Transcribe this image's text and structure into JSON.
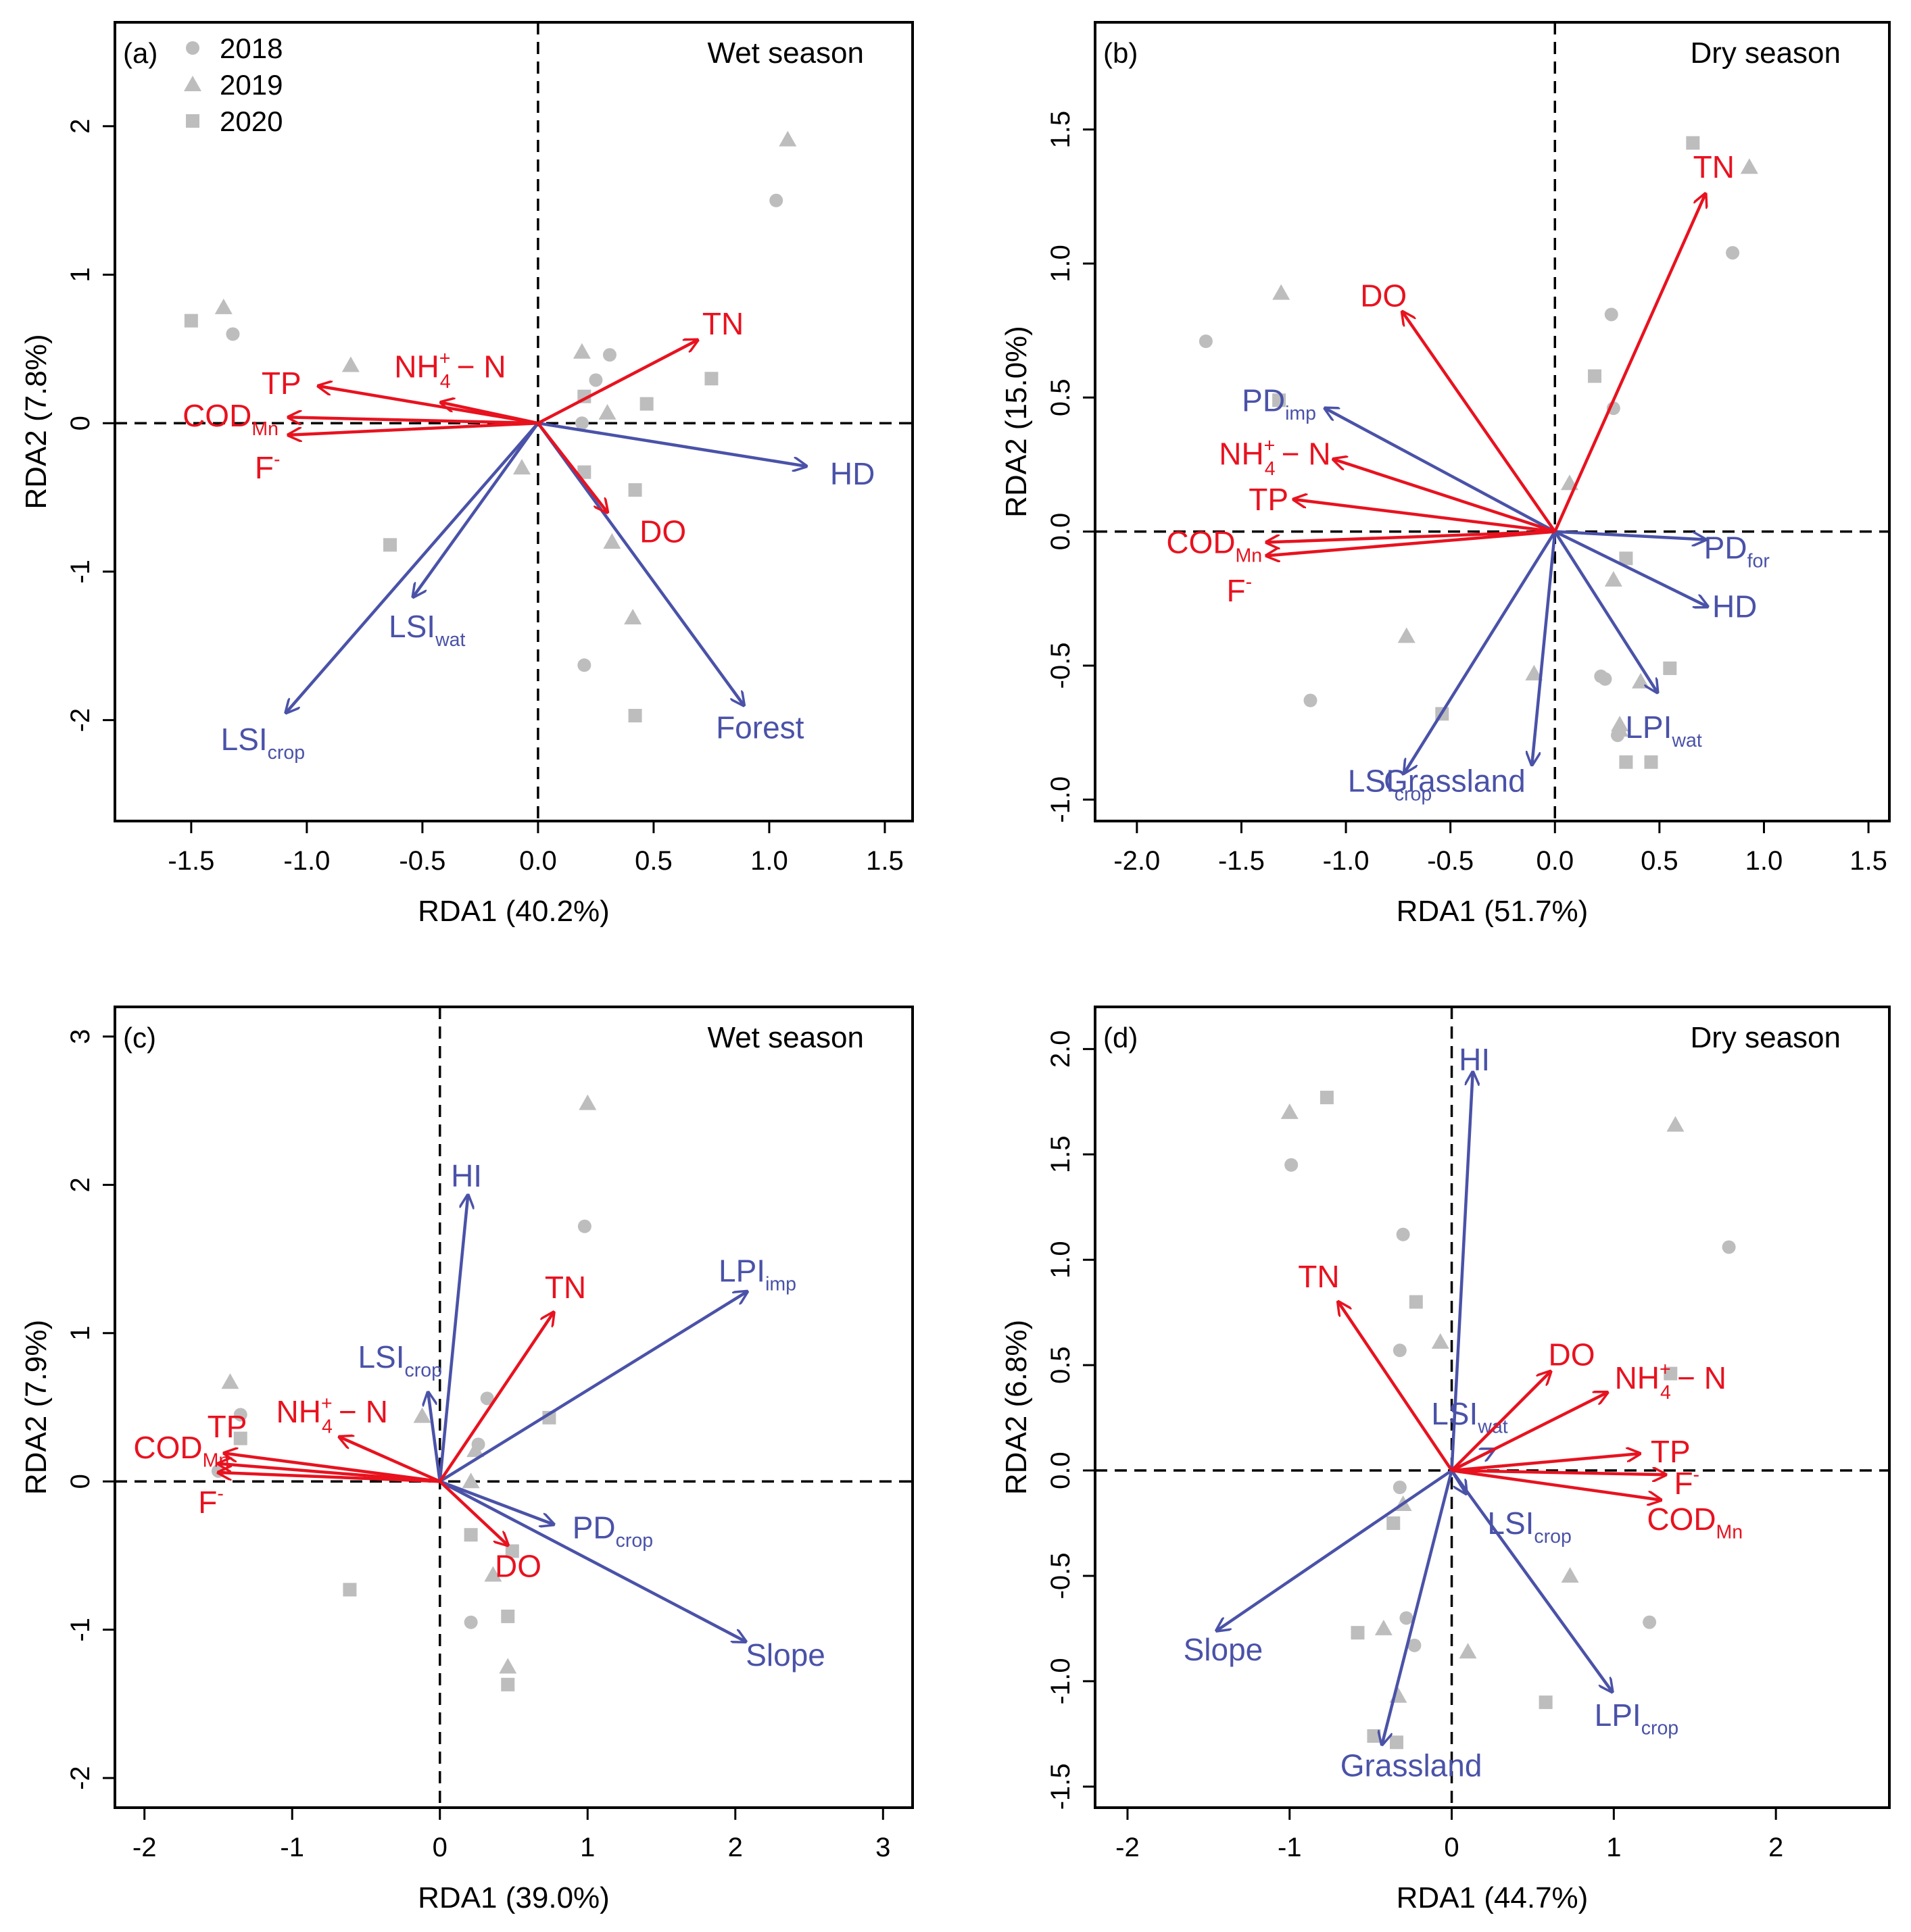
{
  "colors": {
    "response": "#e8121f",
    "explanatory": "#4a52a8",
    "site": "#bdbdbd",
    "axis": "#000000"
  },
  "legend": {
    "items": [
      {
        "label": "2018",
        "shape": "circle"
      },
      {
        "label": "2019",
        "shape": "triangle"
      },
      {
        "label": "2020",
        "shape": "square"
      }
    ]
  },
  "chart_data": [
    {
      "id": "a",
      "type": "scatter",
      "panel_label": "(a)",
      "season": "Wet season",
      "xlabel": "RDA1 (40.2%)",
      "ylabel": "RDA2 (7.8%)",
      "xlim": [
        -1.83,
        1.62
      ],
      "ylim": [
        -2.68,
        2.7
      ],
      "xticks": [
        -1.5,
        -1.0,
        -0.5,
        0.0,
        0.5,
        1.0,
        1.5
      ],
      "xtick_labels": [
        "-1.5",
        "-1.0",
        "-0.5",
        "0.0",
        "0.5",
        "1.0",
        "1.5"
      ],
      "yticks": [
        -2,
        -1,
        0,
        1,
        2
      ],
      "ytick_labels": [
        "-2",
        "-1",
        "0",
        "1",
        "2"
      ],
      "response_vectors": [
        {
          "label": "TN",
          "x": 0.69,
          "y": 0.56,
          "lx": 0.8,
          "ly": 0.67
        },
        {
          "label": "TP",
          "x": -0.95,
          "y": 0.25,
          "lx": -1.11,
          "ly": 0.27
        },
        {
          "label": "NH",
          "sup": "+",
          "sub": "4",
          "suffix": "− N",
          "x": -0.42,
          "y": 0.14,
          "lx": -0.38,
          "ly": 0.38
        },
        {
          "label": "COD",
          "sub": "Mn",
          "x": -1.08,
          "y": 0.04,
          "lx": -1.33,
          "ly": 0.05
        },
        {
          "label": "F",
          "sup": "-",
          "x": -1.08,
          "y": -0.08,
          "lx": -1.17,
          "ly": -0.3
        },
        {
          "label": "DO",
          "x": 0.3,
          "y": -0.6,
          "lx": 0.54,
          "ly": -0.73
        }
      ],
      "explanatory_vectors": [
        {
          "label": "HD",
          "x": 1.16,
          "y": -0.29,
          "lx": 1.36,
          "ly": -0.34
        },
        {
          "label": "LSI",
          "sub": "wat",
          "x": -0.54,
          "y": -1.17,
          "lx": -0.48,
          "ly": -1.37
        },
        {
          "label": "LSI",
          "sub": "crop",
          "x": -1.09,
          "y": -1.95,
          "lx": -1.19,
          "ly": -2.13
        },
        {
          "label": "Forest",
          "x": 0.89,
          "y": -1.9,
          "lx": 0.96,
          "ly": -2.05
        }
      ],
      "sites": [
        {
          "year": "2018",
          "x": 1.03,
          "y": 1.5
        },
        {
          "year": "2018",
          "x": -1.32,
          "y": 0.6
        },
        {
          "year": "2018",
          "x": 0.31,
          "y": 0.46
        },
        {
          "year": "2018",
          "x": 0.25,
          "y": 0.29
        },
        {
          "year": "2018",
          "x": 0.19,
          "y": 0.0
        },
        {
          "year": "2018",
          "x": 0.2,
          "y": -1.63
        },
        {
          "year": "2019",
          "x": 1.08,
          "y": 1.91
        },
        {
          "year": "2019",
          "x": -1.36,
          "y": 0.78
        },
        {
          "year": "2019",
          "x": -0.81,
          "y": 0.39
        },
        {
          "year": "2019",
          "x": 0.19,
          "y": 0.48
        },
        {
          "year": "2019",
          "x": 0.3,
          "y": 0.07
        },
        {
          "year": "2019",
          "x": -0.07,
          "y": -0.3
        },
        {
          "year": "2019",
          "x": 0.32,
          "y": -0.8
        },
        {
          "year": "2019",
          "x": 0.41,
          "y": -1.31
        },
        {
          "year": "2020",
          "x": -1.5,
          "y": 0.69
        },
        {
          "year": "2020",
          "x": 0.75,
          "y": 0.3
        },
        {
          "year": "2020",
          "x": 0.47,
          "y": 0.13
        },
        {
          "year": "2020",
          "x": 0.2,
          "y": 0.18
        },
        {
          "year": "2020",
          "x": 0.2,
          "y": -0.33
        },
        {
          "year": "2020",
          "x": 0.42,
          "y": -0.45
        },
        {
          "year": "2020",
          "x": -0.64,
          "y": -0.82
        },
        {
          "year": "2020",
          "x": 0.42,
          "y": -1.97
        }
      ]
    },
    {
      "id": "b",
      "type": "scatter",
      "panel_label": "(b)",
      "season": "Dry season",
      "xlabel": "RDA1 (51.7%)",
      "ylabel": "RDA2 (15.0%)",
      "xlim": [
        -2.2,
        1.6
      ],
      "ylim": [
        -1.08,
        1.9
      ],
      "xticks": [
        -2.0,
        -1.5,
        -1.0,
        -0.5,
        0.0,
        0.5,
        1.0,
        1.5
      ],
      "xtick_labels": [
        "-2.0",
        "-1.5",
        "-1.0",
        "-0.5",
        "0.0",
        "0.5",
        "1.0",
        "1.5"
      ],
      "yticks": [
        -1.0,
        -0.5,
        0.0,
        0.5,
        1.0,
        1.5
      ],
      "ytick_labels": [
        "-1.0",
        "-0.5",
        "0.0",
        "0.5",
        "1.0",
        "1.5"
      ],
      "response_vectors": [
        {
          "label": "TN",
          "x": 0.72,
          "y": 1.26,
          "lx": 0.76,
          "ly": 1.36
        },
        {
          "label": "DO",
          "x": -0.73,
          "y": 0.82,
          "lx": -0.82,
          "ly": 0.88
        },
        {
          "label": "NH",
          "sup": "+",
          "sub": "4",
          "suffix": "− N",
          "x": -1.06,
          "y": 0.27,
          "lx": -1.34,
          "ly": 0.29
        },
        {
          "label": "TP",
          "x": -1.25,
          "y": 0.12,
          "lx": -1.37,
          "ly": 0.12
        },
        {
          "label": "COD",
          "sub": "Mn",
          "x": -1.38,
          "y": -0.04,
          "lx": -1.63,
          "ly": -0.04
        },
        {
          "label": "F",
          "sup": "-",
          "x": -1.38,
          "y": -0.09,
          "lx": -1.51,
          "ly": -0.22
        }
      ],
      "explanatory_vectors": [
        {
          "label": "PD",
          "sub": "imp",
          "x": -1.1,
          "y": 0.46,
          "lx": -1.32,
          "ly": 0.49
        },
        {
          "label": "PD",
          "sub": "for",
          "x": 0.72,
          "y": -0.03,
          "lx": 0.87,
          "ly": -0.06
        },
        {
          "label": "HD",
          "x": 0.73,
          "y": -0.28,
          "lx": 0.86,
          "ly": -0.28
        },
        {
          "label": "LPI",
          "sub": "wat",
          "x": 0.49,
          "y": -0.6,
          "lx": 0.52,
          "ly": -0.73
        },
        {
          "label": "LSI",
          "sub": "crop",
          "x": -0.72,
          "y": -0.9,
          "lx": -0.79,
          "ly": -0.93
        },
        {
          "label": "Grassland",
          "x": -0.11,
          "y": -0.87,
          "lx": -0.48,
          "ly": -0.93
        }
      ],
      "sites": [
        {
          "year": "2018",
          "x": 0.85,
          "y": 1.04
        },
        {
          "year": "2018",
          "x": -1.67,
          "y": 0.71
        },
        {
          "year": "2018",
          "x": 0.27,
          "y": 0.81
        },
        {
          "year": "2018",
          "x": 0.28,
          "y": 0.46
        },
        {
          "year": "2018",
          "x": -1.17,
          "y": -0.63
        },
        {
          "year": "2018",
          "x": 0.22,
          "y": -0.54
        },
        {
          "year": "2018",
          "x": 0.24,
          "y": -0.55
        },
        {
          "year": "2018",
          "x": 0.3,
          "y": -0.76
        },
        {
          "year": "2019",
          "x": 0.93,
          "y": 1.36
        },
        {
          "year": "2019",
          "x": -1.31,
          "y": 0.89
        },
        {
          "year": "2019",
          "x": 0.07,
          "y": 0.18
        },
        {
          "year": "2019",
          "x": 0.28,
          "y": -0.18
        },
        {
          "year": "2019",
          "x": -0.71,
          "y": -0.39
        },
        {
          "year": "2019",
          "x": -0.1,
          "y": -0.53
        },
        {
          "year": "2019",
          "x": 0.41,
          "y": -0.56
        },
        {
          "year": "2019",
          "x": 0.31,
          "y": -0.72
        },
        {
          "year": "2019",
          "x": 0.31,
          "y": -0.74
        },
        {
          "year": "2020",
          "x": 0.66,
          "y": 1.45
        },
        {
          "year": "2020",
          "x": 0.19,
          "y": 0.58
        },
        {
          "year": "2020",
          "x": -1.32,
          "y": 0.49
        },
        {
          "year": "2020",
          "x": 0.34,
          "y": -0.1
        },
        {
          "year": "2020",
          "x": 0.55,
          "y": -0.51
        },
        {
          "year": "2020",
          "x": -0.54,
          "y": -0.68
        },
        {
          "year": "2020",
          "x": 0.34,
          "y": -0.86
        },
        {
          "year": "2020",
          "x": 0.46,
          "y": -0.86
        }
      ]
    },
    {
      "id": "c",
      "type": "scatter",
      "panel_label": "(c)",
      "season": "Wet season",
      "xlabel": "RDA1 (39.0%)",
      "ylabel": "RDA2 (7.9%)",
      "xlim": [
        -2.2,
        3.2
      ],
      "ylim": [
        -2.2,
        3.2
      ],
      "xticks": [
        -2,
        -1,
        0,
        1,
        2,
        3
      ],
      "xtick_labels": [
        "-2",
        "-1",
        "0",
        "1",
        "2",
        "3"
      ],
      "yticks": [
        -2,
        -1,
        0,
        1,
        2,
        3
      ],
      "ytick_labels": [
        "-2",
        "-1",
        "0",
        "1",
        "2",
        "3"
      ],
      "response_vectors": [
        {
          "label": "TN",
          "x": 0.77,
          "y": 1.14,
          "lx": 0.85,
          "ly": 1.31
        },
        {
          "label": "NH",
          "sup": "+",
          "sub": "4",
          "suffix": "− N",
          "x": -0.68,
          "y": 0.3,
          "lx": -0.73,
          "ly": 0.47
        },
        {
          "label": "TP",
          "x": -1.46,
          "y": 0.19,
          "lx": -1.44,
          "ly": 0.37
        },
        {
          "label": "COD",
          "sub": "Mn",
          "x": -1.5,
          "y": 0.12,
          "lx": -1.75,
          "ly": 0.23
        },
        {
          "label": "F",
          "sup": "-",
          "x": -1.5,
          "y": 0.06,
          "lx": -1.55,
          "ly": -0.14
        },
        {
          "label": "DO",
          "x": 0.46,
          "y": -0.43,
          "lx": 0.53,
          "ly": -0.57
        }
      ],
      "explanatory_vectors": [
        {
          "label": "HI",
          "x": 0.19,
          "y": 1.93,
          "lx": 0.18,
          "ly": 2.06
        },
        {
          "label": "LPI",
          "sub": "imp",
          "x": 2.08,
          "y": 1.28,
          "lx": 2.15,
          "ly": 1.42
        },
        {
          "label": "LSI",
          "sub": "crop",
          "x": -0.08,
          "y": 0.6,
          "lx": -0.27,
          "ly": 0.84
        },
        {
          "label": "PD",
          "sub": "crop",
          "x": 0.77,
          "y": -0.29,
          "lx": 1.17,
          "ly": -0.31
        },
        {
          "label": "Slope",
          "x": 2.07,
          "y": -1.08,
          "lx": 2.34,
          "ly": -1.17
        }
      ],
      "sites": [
        {
          "year": "2018",
          "x": 0.98,
          "y": 1.72
        },
        {
          "year": "2018",
          "x": 0.32,
          "y": 0.56
        },
        {
          "year": "2018",
          "x": -1.35,
          "y": 0.45
        },
        {
          "year": "2018",
          "x": 0.26,
          "y": 0.25
        },
        {
          "year": "2018",
          "x": -1.5,
          "y": 0.07
        },
        {
          "year": "2018",
          "x": 0.21,
          "y": -0.95
        },
        {
          "year": "2019",
          "x": 1.0,
          "y": 2.55
        },
        {
          "year": "2019",
          "x": -1.42,
          "y": 0.67
        },
        {
          "year": "2019",
          "x": -0.12,
          "y": 0.44
        },
        {
          "year": "2019",
          "x": 0.24,
          "y": 0.21
        },
        {
          "year": "2019",
          "x": 0.21,
          "y": 0.0
        },
        {
          "year": "2019",
          "x": 0.36,
          "y": -0.63
        },
        {
          "year": "2019",
          "x": 0.46,
          "y": -1.25
        },
        {
          "year": "2020",
          "x": 0.74,
          "y": 0.43
        },
        {
          "year": "2020",
          "x": -1.35,
          "y": 0.29
        },
        {
          "year": "2020",
          "x": 0.21,
          "y": -0.36
        },
        {
          "year": "2020",
          "x": 0.49,
          "y": -0.47
        },
        {
          "year": "2020",
          "x": -0.61,
          "y": -0.73
        },
        {
          "year": "2020",
          "x": 0.46,
          "y": -0.91
        },
        {
          "year": "2020",
          "x": 0.46,
          "y": -1.37
        }
      ]
    },
    {
      "id": "d",
      "type": "scatter",
      "panel_label": "(d)",
      "season": "Dry season",
      "xlabel": "RDA1 (44.7%)",
      "ylabel": "RDA2 (6.8%)",
      "xlim": [
        -2.2,
        2.7
      ],
      "ylim": [
        -1.6,
        2.2
      ],
      "xticks": [
        -2,
        -1,
        0,
        1,
        2
      ],
      "xtick_labels": [
        "-2",
        "-1",
        "0",
        "1",
        "2"
      ],
      "yticks": [
        -1.5,
        -1.0,
        -0.5,
        0.0,
        0.5,
        1.0,
        1.5,
        2.0
      ],
      "ytick_labels": [
        "-1.5",
        "-1.0",
        "-0.5",
        "0.0",
        "0.5",
        "1.0",
        "1.5",
        "2.0"
      ],
      "response_vectors": [
        {
          "label": "TN",
          "x": -0.7,
          "y": 0.8,
          "lx": -0.82,
          "ly": 0.92
        },
        {
          "label": "DO",
          "x": 0.61,
          "y": 0.47,
          "lx": 0.74,
          "ly": 0.55
        },
        {
          "label": "NH",
          "sup": "+",
          "sub": "4",
          "suffix": "− N",
          "x": 0.96,
          "y": 0.37,
          "lx": 1.35,
          "ly": 0.44
        },
        {
          "label": "TP",
          "x": 1.16,
          "y": 0.08,
          "lx": 1.35,
          "ly": 0.09
        },
        {
          "label": "F",
          "sup": "-",
          "x": 1.32,
          "y": -0.02,
          "lx": 1.45,
          "ly": -0.06
        },
        {
          "label": "COD",
          "sub": "Mn",
          "x": 1.29,
          "y": -0.14,
          "lx": 1.5,
          "ly": -0.23
        }
      ],
      "explanatory_vectors": [
        {
          "label": "HI",
          "x": 0.13,
          "y": 1.89,
          "lx": 0.14,
          "ly": 1.95
        },
        {
          "label": "LSI",
          "sub": "wat",
          "x": 0.26,
          "y": 0.1,
          "lx": 0.11,
          "ly": 0.27
        },
        {
          "label": "LSI",
          "sub": "crop",
          "x": 0.09,
          "y": -0.11,
          "lx": 0.48,
          "ly": -0.25
        },
        {
          "label": "LPI",
          "sub": "crop",
          "x": 0.99,
          "y": -1.05,
          "lx": 1.14,
          "ly": -1.16
        },
        {
          "label": "Slope",
          "x": -1.45,
          "y": -0.76,
          "lx": -1.41,
          "ly": -0.85
        },
        {
          "label": "Grassland",
          "x": -0.43,
          "y": -1.3,
          "lx": -0.25,
          "ly": -1.4
        }
      ],
      "sites": [
        {
          "year": "2018",
          "x": -0.99,
          "y": 1.45
        },
        {
          "year": "2018",
          "x": -0.3,
          "y": 1.12
        },
        {
          "year": "2018",
          "x": -0.32,
          "y": 0.57
        },
        {
          "year": "2018",
          "x": -0.32,
          "y": -0.08
        },
        {
          "year": "2018",
          "x": -0.28,
          "y": -0.7
        },
        {
          "year": "2018",
          "x": -0.23,
          "y": -0.83
        },
        {
          "year": "2018",
          "x": 1.22,
          "y": -0.72
        },
        {
          "year": "2018",
          "x": 1.71,
          "y": 1.06
        },
        {
          "year": "2019",
          "x": -1.0,
          "y": 1.7
        },
        {
          "year": "2019",
          "x": -0.07,
          "y": 0.61
        },
        {
          "year": "2019",
          "x": 1.38,
          "y": 1.64
        },
        {
          "year": "2019",
          "x": -0.3,
          "y": -0.16
        },
        {
          "year": "2019",
          "x": 0.73,
          "y": -0.5
        },
        {
          "year": "2019",
          "x": -0.42,
          "y": -0.75
        },
        {
          "year": "2019",
          "x": 0.1,
          "y": -0.86
        },
        {
          "year": "2019",
          "x": -0.33,
          "y": -1.07
        },
        {
          "year": "2020",
          "x": -0.77,
          "y": 1.77
        },
        {
          "year": "2020",
          "x": -0.22,
          "y": 0.8
        },
        {
          "year": "2020",
          "x": 1.35,
          "y": 0.46
        },
        {
          "year": "2020",
          "x": -0.36,
          "y": -0.25
        },
        {
          "year": "2020",
          "x": -0.58,
          "y": -0.77
        },
        {
          "year": "2020",
          "x": 0.58,
          "y": -1.1
        },
        {
          "year": "2020",
          "x": -0.48,
          "y": -1.26
        },
        {
          "year": "2020",
          "x": -0.34,
          "y": -1.29
        }
      ]
    }
  ]
}
